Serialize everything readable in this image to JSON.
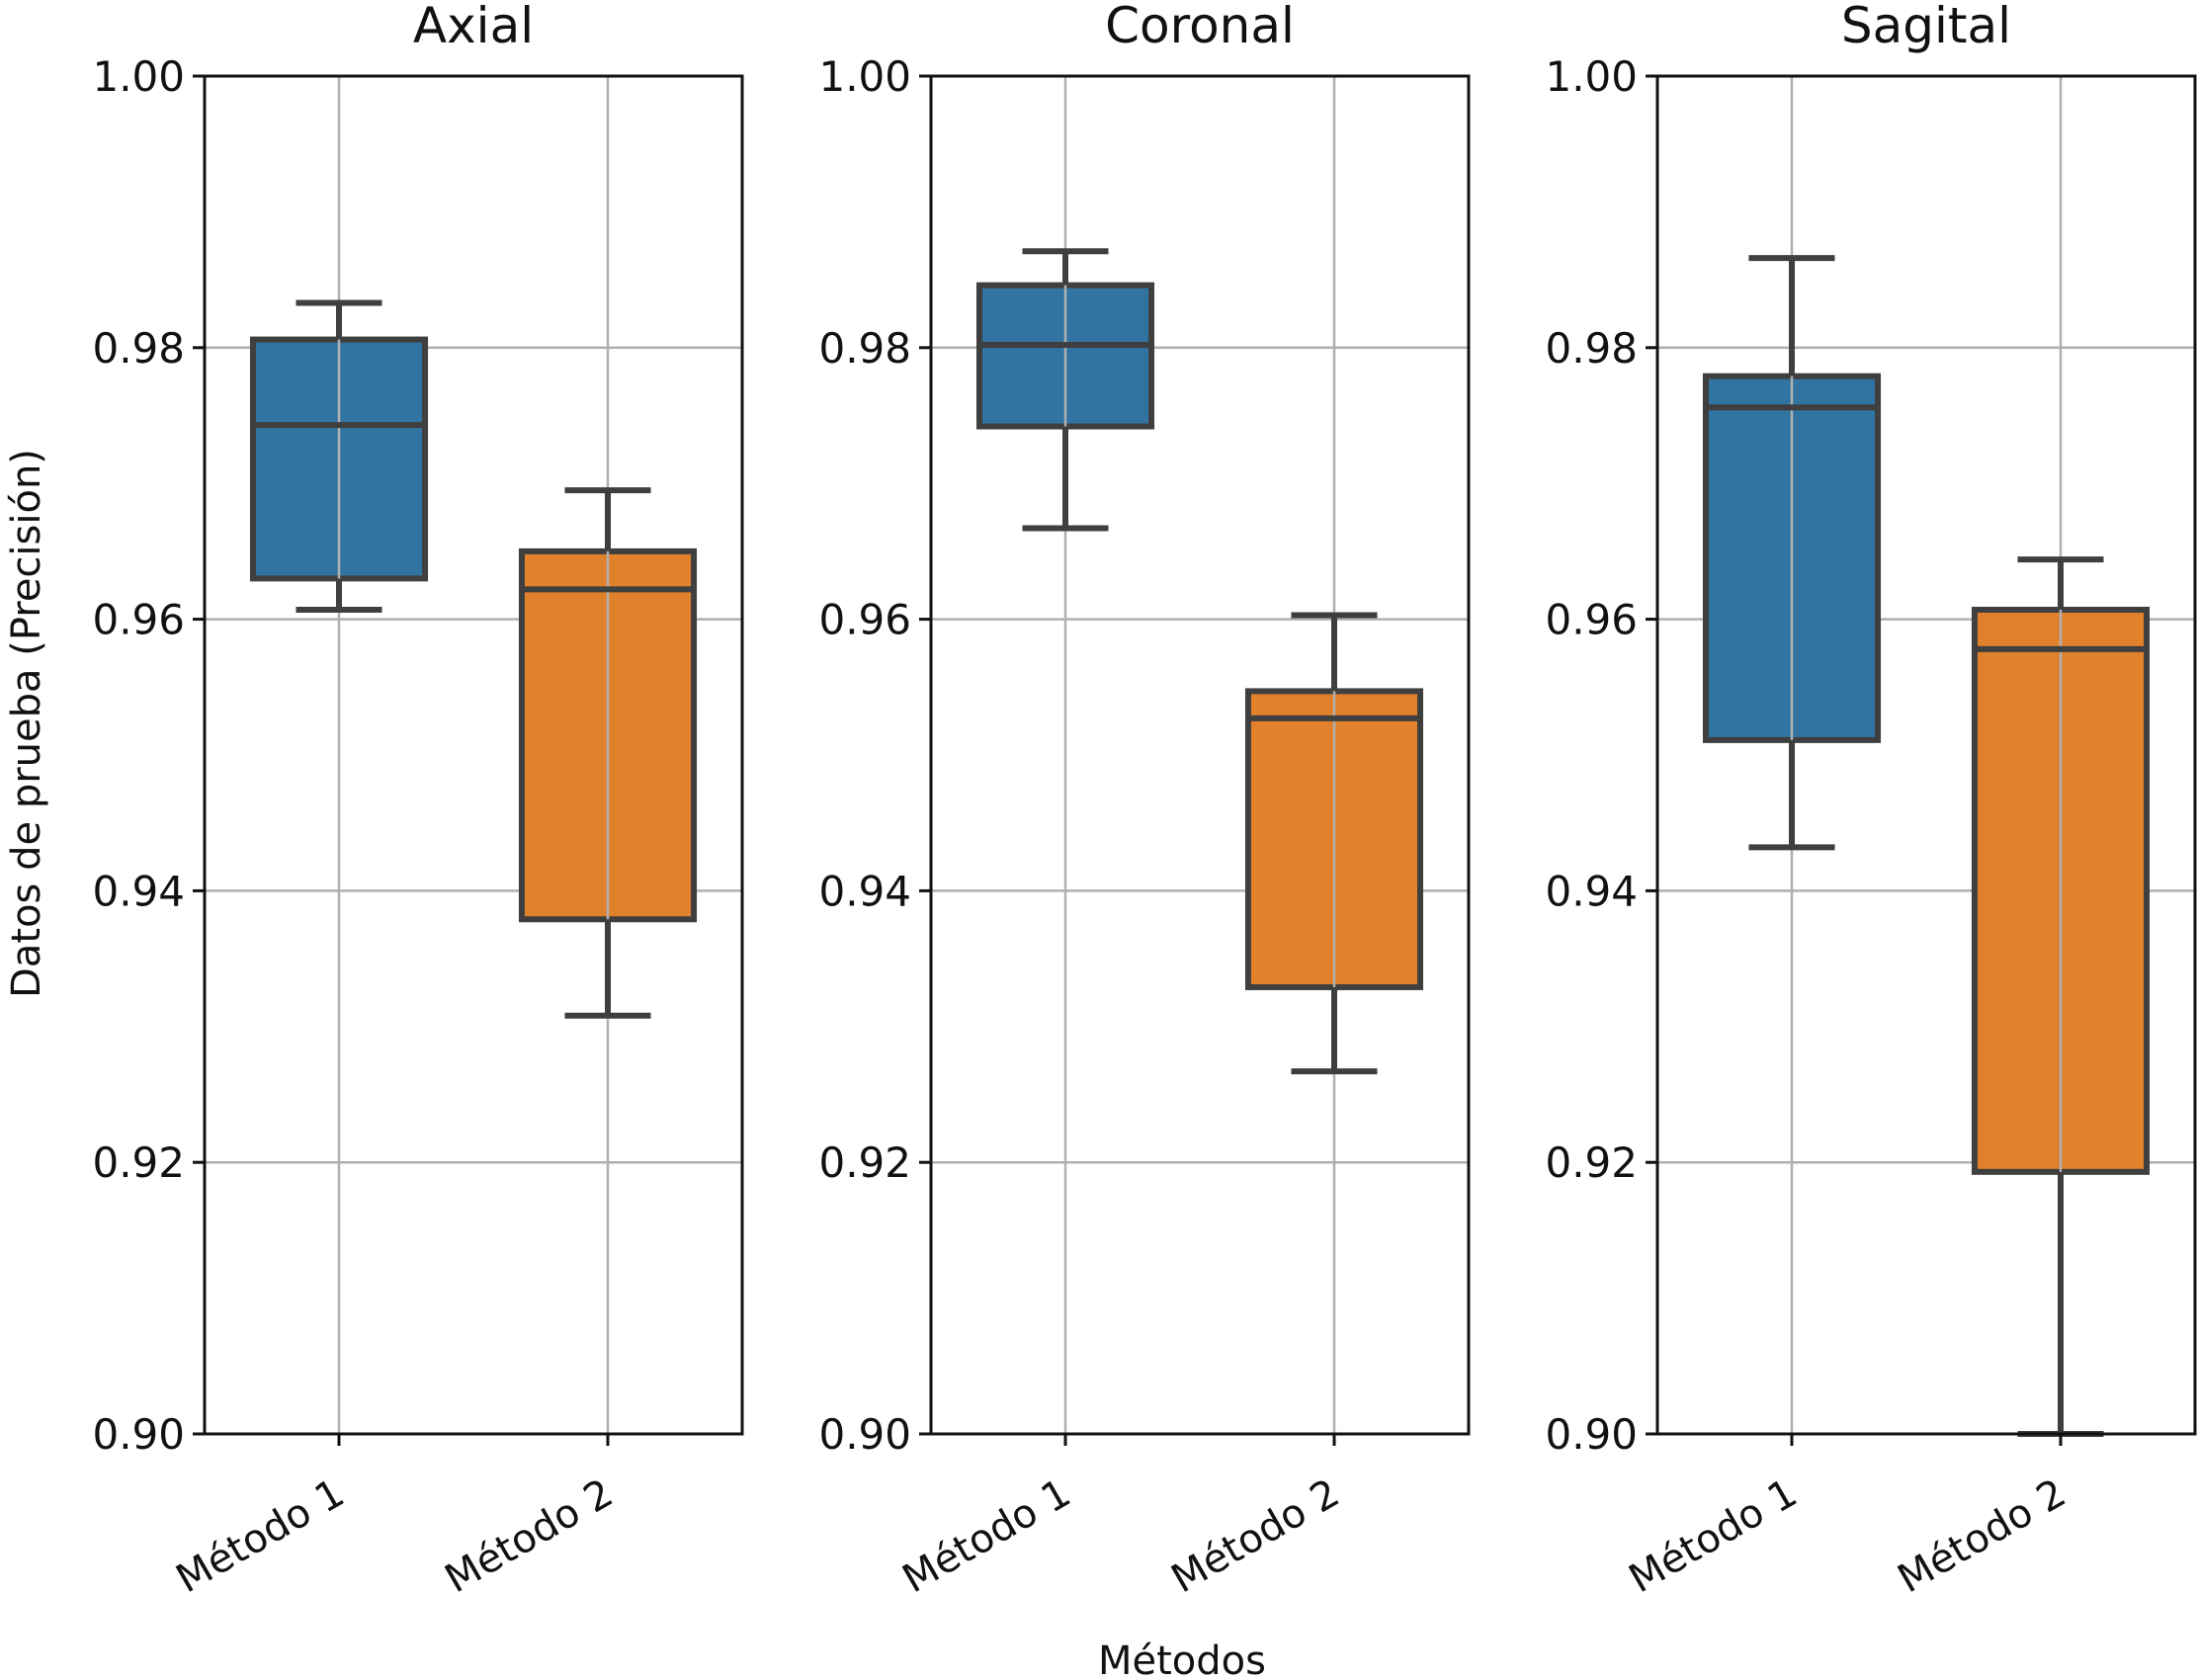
{
  "figure": {
    "ylabel": "Datos de prueba (Precisión)",
    "xlabel": "Métodos"
  },
  "colors": {
    "metodo1": "#3274a1",
    "metodo2": "#e1812c",
    "box_edge": "#3f3f3f",
    "grid": "#b0b0b0"
  },
  "chart_data": [
    {
      "type": "box",
      "title": "Axial",
      "categories": [
        "Método 1",
        "Método 2"
      ],
      "ylim": [
        0.9,
        1.0
      ],
      "yticks": [
        "0.90",
        "0.92",
        "0.94",
        "0.96",
        "0.98",
        "1.00"
      ],
      "grid": true,
      "boxes": [
        {
          "name": "Método 1",
          "whisker_low": 0.9607,
          "q1": 0.963,
          "median": 0.9743,
          "q3": 0.9806,
          "whisker_high": 0.9833
        },
        {
          "name": "Método 2",
          "whisker_low": 0.9308,
          "q1": 0.9379,
          "median": 0.9622,
          "q3": 0.965,
          "whisker_high": 0.9695
        }
      ]
    },
    {
      "type": "box",
      "title": "Coronal",
      "categories": [
        "Método 1",
        "Método 2"
      ],
      "ylim": [
        0.9,
        1.0
      ],
      "yticks": [
        "0.90",
        "0.92",
        "0.94",
        "0.96",
        "0.98",
        "1.00"
      ],
      "grid": true,
      "boxes": [
        {
          "name": "Método 1",
          "whisker_low": 0.9667,
          "q1": 0.9742,
          "median": 0.9802,
          "q3": 0.9846,
          "whisker_high": 0.9871
        },
        {
          "name": "Método 2",
          "whisker_low": 0.9267,
          "q1": 0.9329,
          "median": 0.9527,
          "q3": 0.9547,
          "whisker_high": 0.9603
        }
      ]
    },
    {
      "type": "box",
      "title": "Sagital",
      "categories": [
        "Método 1",
        "Método 2"
      ],
      "ylim": [
        0.9,
        1.0
      ],
      "yticks": [
        "0.90",
        "0.92",
        "0.94",
        "0.96",
        "0.98",
        "1.00"
      ],
      "grid": true,
      "boxes": [
        {
          "name": "Método 1",
          "whisker_low": 0.9432,
          "q1": 0.9511,
          "median": 0.9756,
          "q3": 0.9779,
          "whisker_high": 0.9866
        },
        {
          "name": "Método 2",
          "whisker_low": 0.9,
          "q1": 0.9193,
          "median": 0.9578,
          "q3": 0.9607,
          "whisker_high": 0.9644
        }
      ]
    }
  ]
}
